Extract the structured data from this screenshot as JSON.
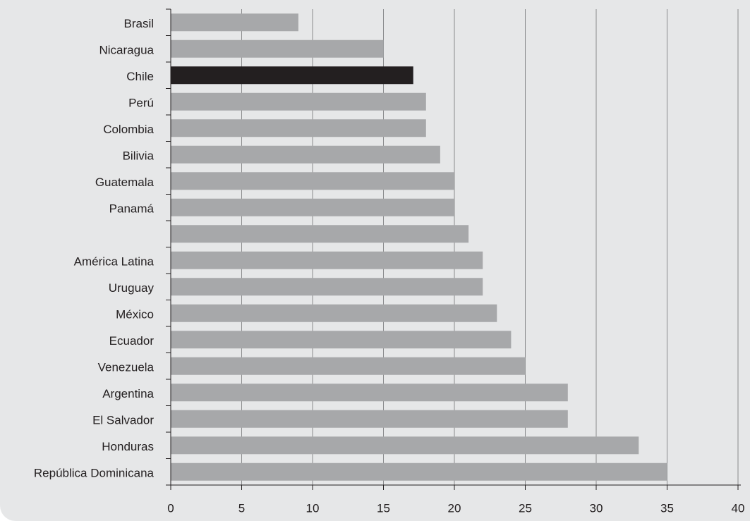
{
  "chart_data": {
    "type": "hbar",
    "categories": [
      "Brasil",
      "Nicaragua",
      "Chile",
      "Perú",
      "Colombia",
      "Bilivia",
      "Guatemala",
      "Panamá",
      null,
      "América Latina",
      "Uruguay",
      "México",
      "Ecuador",
      "Venezuela",
      "Argentina",
      "El Salvador",
      "Honduras",
      "República Dominicana"
    ],
    "values": [
      9,
      15,
      17.1,
      18,
      18,
      19,
      20,
      20,
      21,
      22,
      22,
      23,
      24,
      25,
      28,
      28,
      33,
      35
    ],
    "colors": [
      "#a7a8aa",
      "#a7a8aa",
      "#231f20",
      "#a7a8aa",
      "#a7a8aa",
      "#a7a8aa",
      "#a7a8aa",
      "#a7a8aa",
      "#a7a8aa",
      "#a7a8aa",
      "#a7a8aa",
      "#a7a8aa",
      "#a7a8aa",
      "#a7a8aa",
      "#a7a8aa",
      "#a7a8aa",
      "#a7a8aa",
      "#a7a8aa"
    ],
    "xlim": [
      0,
      40
    ],
    "xticks": [
      0,
      5,
      10,
      15,
      20,
      25,
      30,
      35,
      40
    ],
    "grid": true
  }
}
